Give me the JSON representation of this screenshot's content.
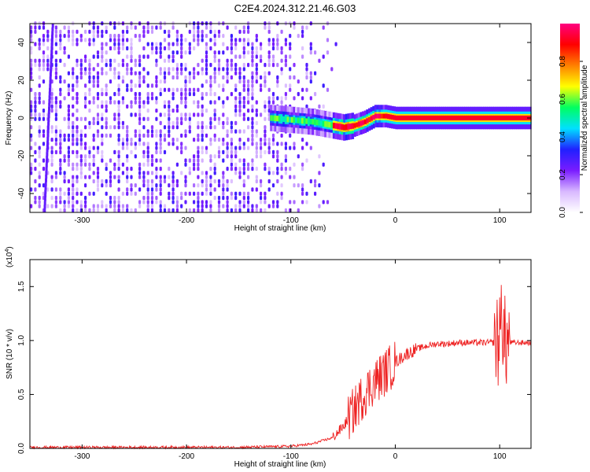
{
  "title": "C2E4.2024.312.21.46.G03",
  "chart_data": [
    {
      "type": "heatmap",
      "xlabel": "Height of straight line (km)",
      "ylabel": "Frequency (Hz)",
      "xlim": [
        -350,
        130
      ],
      "ylim": [
        -50,
        50
      ],
      "xticks": [
        -300,
        -200,
        -100,
        0,
        100
      ],
      "yticks": [
        -40,
        -20,
        0,
        20,
        40
      ],
      "colorbar": {
        "label": "Normalized spectral amplitude",
        "range": [
          0.0,
          1.0
        ],
        "ticks": [
          "0.0",
          "0.2",
          "0.4",
          "0.6",
          "0.8"
        ],
        "colormap": [
          "#ffffff",
          "#d8b8ff",
          "#7a1cff",
          "#2020ff",
          "#00e0ff",
          "#00ff60",
          "#ffff00",
          "#ff8000",
          "#ff0000",
          "#ff0080"
        ]
      },
      "description_regions": [
        {
          "x_range": [
            -350,
            -100
          ],
          "content": "broadband noise, amplitude 0.1-0.3, all frequencies"
        },
        {
          "x_range": [
            -100,
            130
          ],
          "content": "narrow carrier line near 0 Hz, amplitude 0.5-1.0"
        }
      ],
      "carrier_track": {
        "x": [
          -120,
          -100,
          -80,
          -70,
          -60,
          -50,
          -40,
          -30,
          -20,
          -10,
          0,
          20,
          40,
          60,
          80,
          100,
          130
        ],
        "y": [
          0,
          -1,
          -2,
          -3,
          -4,
          -5,
          -4,
          -2,
          1,
          1,
          0,
          0,
          0,
          0,
          0,
          0,
          0
        ]
      },
      "grid": false
    },
    {
      "type": "line",
      "xlabel": "Height of straight line (km)",
      "ylabel": "SNR (10 * v/v)",
      "yscale_label": "(x10^4)",
      "xlim": [
        -350,
        130
      ],
      "ylim": [
        0,
        1.75
      ],
      "xticks": [
        -300,
        -200,
        -100,
        0,
        100
      ],
      "yticks": [
        "0.0",
        "0.5",
        "1.0",
        "1.5"
      ],
      "series": [
        {
          "color": "#ee2222",
          "x": [
            -350,
            -300,
            -250,
            -200,
            -150,
            -100,
            -80,
            -60,
            -50,
            -40,
            -30,
            -20,
            -10,
            0,
            10,
            20,
            30,
            40,
            50,
            60,
            80,
            95,
            100,
            105,
            110,
            130
          ],
          "y": [
            0.01,
            0.01,
            0.01,
            0.01,
            0.01,
            0.02,
            0.04,
            0.1,
            0.2,
            0.35,
            0.5,
            0.62,
            0.7,
            0.8,
            0.87,
            0.92,
            0.95,
            0.97,
            0.97,
            0.98,
            0.98,
            0.98,
            1.2,
            0.98,
            0.98,
            0.98
          ]
        }
      ],
      "grid": false
    }
  ]
}
